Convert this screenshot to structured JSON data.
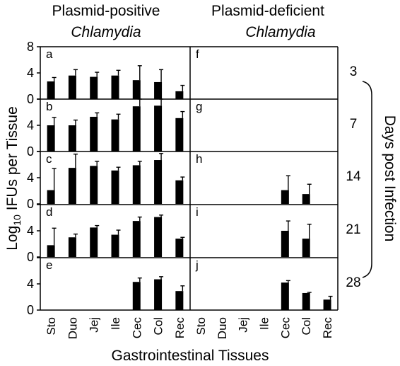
{
  "figure": {
    "col_titles": [
      {
        "line1": "Plasmid-positive",
        "line2": "Chlamydia"
      },
      {
        "line1": "Plasmid-deficient",
        "line2": "Chlamydia"
      }
    ],
    "ylabel_main": "Log",
    "ylabel_sub": "10",
    "ylabel_rest": " IFUs per Tissue",
    "xlabel": "Gastrointestinal Tissues",
    "right_label": "Days post Infection",
    "colors": {
      "bar": "#000000",
      "axes": "#000000",
      "background": "#ffffff"
    }
  },
  "chart_data": {
    "type": "bar",
    "title": "",
    "xlabel": "Gastrointestinal Tissues",
    "ylabel": "Log10 IFUs per Tissue",
    "ylim": [
      0,
      8
    ],
    "yticks": [
      0,
      4,
      8
    ],
    "categories": [
      "Sto",
      "Duo",
      "Jej",
      "Ile",
      "Cec",
      "Col",
      "Rec"
    ],
    "days": [
      "3",
      "7",
      "14",
      "21",
      "28"
    ],
    "panels": [
      {
        "label": "a",
        "group": "Plasmid-positive",
        "day": "3",
        "values": [
          2.7,
          3.6,
          3.4,
          3.6,
          2.9,
          2.6,
          1.2
        ],
        "errors": [
          0.6,
          0.9,
          0.7,
          0.8,
          2.2,
          1.9,
          0.9
        ]
      },
      {
        "label": "b",
        "group": "Plasmid-positive",
        "day": "7",
        "values": [
          4.0,
          4.0,
          5.3,
          4.9,
          6.9,
          7.0,
          5.1
        ],
        "errors": [
          1.2,
          0.8,
          0.6,
          0.8,
          1.2,
          1.1,
          1.0
        ]
      },
      {
        "label": "c",
        "group": "Plasmid-positive",
        "day": "14",
        "values": [
          2.1,
          5.5,
          5.8,
          5.1,
          5.9,
          6.7,
          3.6
        ],
        "errors": [
          3.3,
          2.1,
          0.7,
          0.5,
          0.6,
          1.0,
          0.5
        ]
      },
      {
        "label": "d",
        "group": "Plasmid-positive",
        "day": "21",
        "values": [
          1.8,
          3.0,
          4.5,
          3.4,
          5.5,
          6.1,
          2.8
        ],
        "errors": [
          2.6,
          0.5,
          0.3,
          0.7,
          0.6,
          0.3,
          0.2
        ]
      },
      {
        "label": "e",
        "group": "Plasmid-positive",
        "day": "28",
        "values": [
          0,
          0,
          0,
          0,
          4.3,
          4.7,
          2.9
        ],
        "errors": [
          0,
          0,
          0,
          0,
          0.6,
          0.4,
          0.8
        ]
      },
      {
        "label": "f",
        "group": "Plasmid-deficient",
        "day": "3",
        "values": [
          0,
          0,
          0,
          0,
          0,
          0,
          0
        ],
        "errors": [
          0,
          0,
          0,
          0,
          0,
          0,
          0
        ]
      },
      {
        "label": "g",
        "group": "Plasmid-deficient",
        "day": "7",
        "values": [
          0,
          0,
          0,
          0,
          0,
          0,
          0
        ],
        "errors": [
          0,
          0,
          0,
          0,
          0,
          0,
          0
        ]
      },
      {
        "label": "h",
        "group": "Plasmid-deficient",
        "day": "14",
        "values": [
          0,
          0,
          0,
          0,
          2.1,
          1.5,
          0
        ],
        "errors": [
          0,
          0,
          0,
          0,
          2.2,
          1.5,
          0
        ]
      },
      {
        "label": "i",
        "group": "Plasmid-deficient",
        "day": "21",
        "values": [
          0,
          0,
          0,
          0,
          4.0,
          2.8,
          0
        ],
        "errors": [
          0,
          0,
          0,
          0,
          1.5,
          2.2,
          0
        ]
      },
      {
        "label": "j",
        "group": "Plasmid-deficient",
        "day": "28",
        "values": [
          0,
          0,
          0,
          0,
          4.2,
          2.6,
          1.6
        ],
        "errors": [
          0,
          0,
          0,
          0,
          0.3,
          0.1,
          0.5
        ]
      }
    ]
  }
}
